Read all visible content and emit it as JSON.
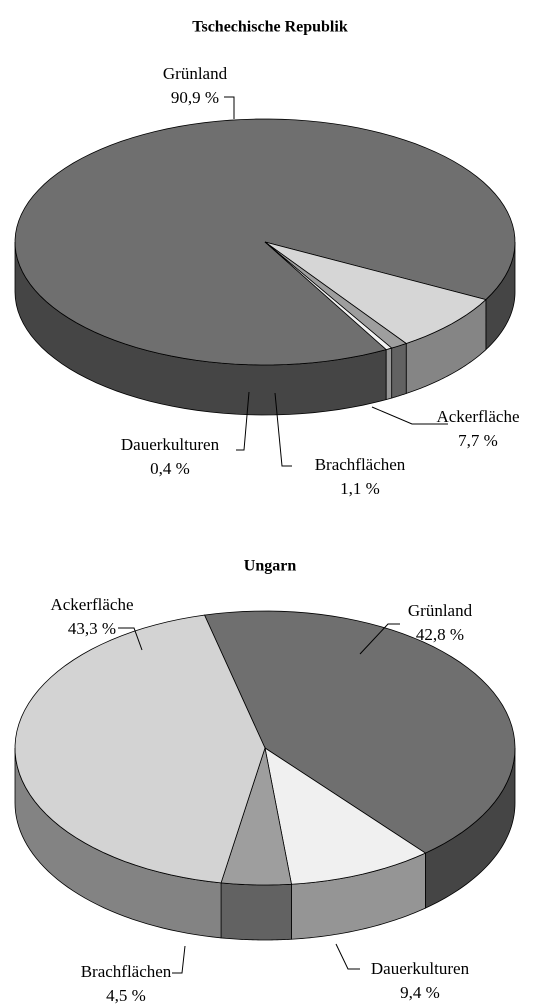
{
  "chart_data": [
    {
      "type": "pie",
      "title": "Tschechische Republik",
      "categories": [
        "Grünland",
        "Ackerfläche",
        "Brachflächen",
        "Dauerkulturen"
      ],
      "values": [
        90.9,
        7.7,
        1.1,
        0.4
      ],
      "value_labels": [
        "90,9 %",
        "7,7 %",
        "1,1 %",
        "0,4 %"
      ],
      "colors": [
        "#6f6f6f",
        "#d6d6d6",
        "#9e9e9e",
        "#f2f2f2"
      ]
    },
    {
      "type": "pie",
      "title": "Ungarn",
      "categories": [
        "Grünland",
        "Dauerkulturen",
        "Brachflächen",
        "Ackerfläche"
      ],
      "values": [
        42.8,
        9.4,
        4.5,
        43.3
      ],
      "value_labels": [
        "42,8 %",
        "9,4 %",
        "4,5 %",
        "43,3 %"
      ],
      "colors": [
        "#6f6f6f",
        "#f0f0f0",
        "#9e9e9e",
        "#d3d3d3"
      ]
    }
  ]
}
